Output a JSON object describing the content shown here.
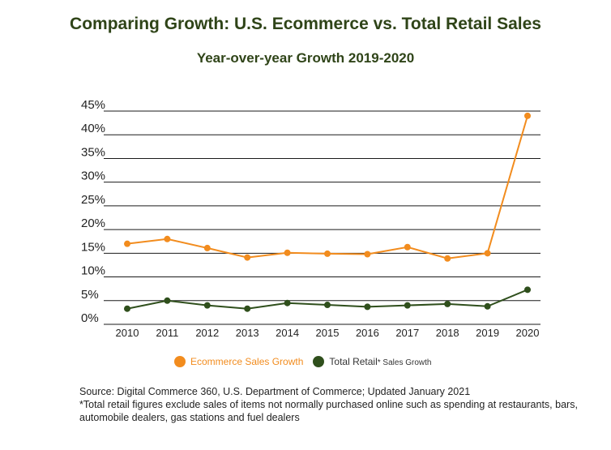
{
  "chart_data": {
    "type": "line",
    "title": "Comparing Growth: U.S. Ecommerce vs. Total Retail Sales",
    "subtitle": "Year-over-year Growth 2019-2020",
    "categories": [
      "2010",
      "2011",
      "2012",
      "2013",
      "2014",
      "2015",
      "2016",
      "2017",
      "2018",
      "2019",
      "2020"
    ],
    "y_tick_labels": [
      "0%",
      "5%",
      "10%",
      "15%",
      "20%",
      "25%",
      "30%",
      "35%",
      "40%",
      "45%"
    ],
    "ylim": [
      0,
      45
    ],
    "grid": true,
    "legend_position": "bottom",
    "series": [
      {
        "name": "Ecommerce Sales Growth",
        "color": "#f28c1e",
        "values": [
          17.0,
          18.0,
          16.1,
          14.1,
          15.1,
          14.9,
          14.8,
          16.3,
          13.9,
          15.0,
          44.0
        ]
      },
      {
        "name": "Total Retail",
        "name_suffix": "* Sales Growth",
        "color": "#2f4f1c",
        "values": [
          3.3,
          5.0,
          4.0,
          3.3,
          4.5,
          4.1,
          3.7,
          4.0,
          4.3,
          3.8,
          7.3
        ]
      }
    ]
  },
  "source": {
    "line1": "Source: Digital Commerce 360, U.S. Department of Commerce; Updated January 2021",
    "line2": "*Total retail figures exclude sales of items not normally purchased online such as spending at restaurants, bars, automobile dealers, gas stations and fuel dealers"
  }
}
